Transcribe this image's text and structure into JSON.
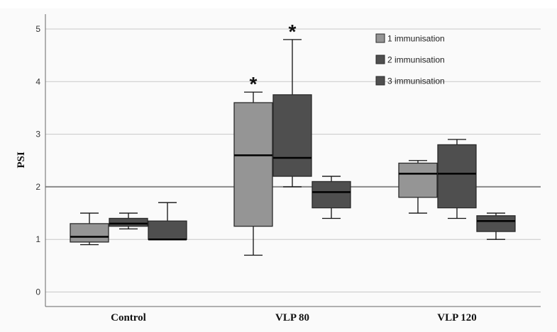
{
  "chart_data": {
    "type": "boxplot",
    "title": "",
    "xlabel": "",
    "ylabel": "PSI",
    "ylim": [
      -0.3,
      5.3
    ],
    "yticks": [
      0,
      1,
      2,
      3,
      4,
      5
    ],
    "ytick_labels": [
      "0",
      "1",
      "2",
      "3",
      "4",
      "5"
    ],
    "grid": true,
    "reference_line": 2,
    "categories": [
      "Control",
      "VLP 80",
      "VLP 120"
    ],
    "legend": {
      "placement": "top-right",
      "entries": [
        "1 immunisation",
        "2 immunisation",
        "3 immunisation"
      ]
    },
    "series": [
      {
        "name": "1 immunisation",
        "color": "#959595",
        "boxes": [
          {
            "min": 0.9,
            "q1": 0.95,
            "median": 1.05,
            "q3": 1.3,
            "max": 1.5,
            "marker": ""
          },
          {
            "min": 0.7,
            "q1": 1.25,
            "median": 2.6,
            "q3": 3.6,
            "max": 3.8,
            "marker": "*"
          },
          {
            "min": 1.5,
            "q1": 1.8,
            "median": 2.25,
            "q3": 2.45,
            "max": 2.5,
            "marker": ""
          }
        ]
      },
      {
        "name": "2 immunisation",
        "color": "#4f4f4f",
        "boxes": [
          {
            "min": 1.2,
            "q1": 1.25,
            "median": 1.3,
            "q3": 1.4,
            "max": 1.5,
            "marker": ""
          },
          {
            "min": 2.0,
            "q1": 2.2,
            "median": 2.55,
            "q3": 3.75,
            "max": 4.8,
            "marker": "*"
          },
          {
            "min": 1.4,
            "q1": 1.6,
            "median": 2.25,
            "q3": 2.8,
            "max": 2.9,
            "marker": ""
          }
        ]
      },
      {
        "name": "3 immunisation",
        "color": "#4f4f4f",
        "boxes": [
          {
            "min": 1.0,
            "q1": 1.0,
            "median": 1.0,
            "q3": 1.35,
            "max": 1.7,
            "marker": ""
          },
          {
            "min": 1.4,
            "q1": 1.6,
            "median": 1.9,
            "q3": 2.1,
            "max": 2.2,
            "marker": ""
          },
          {
            "min": 1.0,
            "q1": 1.15,
            "median": 1.35,
            "q3": 1.45,
            "max": 1.5,
            "marker": ""
          }
        ]
      }
    ]
  }
}
